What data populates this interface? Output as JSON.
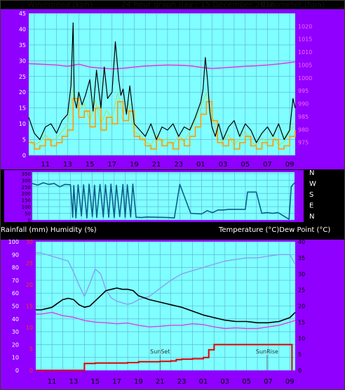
{
  "header": {
    "left": "Windspeed (kph)",
    "center": "24 hour graph day : 15 December 2018",
    "right": "Barometer (hpa)"
  },
  "colors": {
    "panel_bg": "#8f00ff",
    "plot_bg": "#7fffff",
    "grid": "#5aaed0",
    "wind_speed": "#000000",
    "wind_avg": "#ff9900",
    "wind_avg2": "#a6e06a",
    "barometer": "#e040e0",
    "direction": "#0c5e8a",
    "temperature": "#8aa0f0",
    "dewpoint": "#e040e0",
    "humidity": "#000000",
    "rain": "#e00000"
  },
  "x_tick_labels": [
    "11",
    "13",
    "15",
    "17",
    "19",
    "21",
    "23",
    "01",
    "03",
    "05",
    "07",
    "09"
  ],
  "direction_labels": [
    "N",
    "W",
    "S",
    "E",
    "N"
  ],
  "bottom_header": {
    "left": "Rainfall (mm)  Humidity (%)",
    "right": "Temperature (°C)Dew Point (°C)"
  },
  "annotations": [
    "SunSet",
    "SunRise"
  ],
  "chart_data": [
    {
      "type": "line",
      "title": "24 hour graph day : 15 December 2018",
      "ylabel_left": "Windspeed (kph)",
      "ylabel_right": "Barometer (hpa)",
      "x_range_hours": [
        9.5,
        33.5
      ],
      "left_ylim": [
        0,
        45
      ],
      "left_ticks": [
        0,
        5,
        10,
        15,
        20,
        25,
        30,
        35,
        40,
        45
      ],
      "right_ylim": [
        970,
        1025
      ],
      "right_ticks": [
        975,
        980,
        985,
        990,
        995,
        1000,
        1005,
        1010,
        1015,
        1020
      ],
      "grid": true,
      "series": [
        {
          "name": "Windspeed",
          "axis": "left",
          "x": [
            9.5,
            10,
            10.5,
            11,
            11.5,
            12,
            12.5,
            13,
            13.3,
            13.5,
            13.6,
            13.8,
            14,
            14.3,
            14.6,
            15,
            15.3,
            15.6,
            16,
            16.3,
            16.6,
            17,
            17.3,
            17.6,
            17.8,
            18,
            18.3,
            18.6,
            19,
            19.5,
            20,
            20.5,
            21,
            21.5,
            22,
            22.5,
            23,
            23.5,
            24,
            24.5,
            25,
            25.2,
            25.4,
            25.6,
            25.8,
            26,
            26.3,
            26.6,
            27,
            27.5,
            28,
            28.5,
            29,
            29.5,
            30,
            30.5,
            31,
            31.5,
            32,
            32.5,
            33,
            33.3,
            33.5
          ],
          "y": [
            12,
            7,
            5,
            9,
            10,
            7,
            11,
            13,
            22,
            42,
            18,
            15,
            20,
            16,
            19,
            24,
            14,
            27,
            15,
            28,
            18,
            20,
            36,
            24,
            19,
            21,
            13,
            22,
            10,
            8,
            6,
            10,
            5,
            9,
            8,
            10,
            6,
            9,
            8,
            12,
            17,
            21,
            31,
            24,
            14,
            9,
            6,
            10,
            5,
            9,
            11,
            6,
            10,
            8,
            4,
            7,
            9,
            6,
            10,
            5,
            8,
            18,
            15
          ]
        },
        {
          "name": "Average",
          "axis": "left",
          "x": [
            9.5,
            10,
            10.5,
            11,
            11.5,
            12,
            12.5,
            13,
            13.5,
            14,
            14.5,
            15,
            15.5,
            16,
            16.5,
            17,
            17.5,
            18,
            18.5,
            19,
            19.5,
            20,
            20.5,
            21,
            21.5,
            22,
            22.5,
            23,
            23.5,
            24,
            24.5,
            25,
            25.5,
            26,
            26.5,
            27,
            27.5,
            28,
            28.5,
            29,
            29.5,
            30,
            30.5,
            31,
            31.5,
            32,
            32.5,
            33,
            33.5
          ],
          "y": [
            4,
            2,
            3,
            5,
            3,
            4,
            6,
            8,
            18,
            12,
            14,
            9,
            15,
            8,
            12,
            10,
            17,
            11,
            14,
            6,
            5,
            3,
            2,
            5,
            3,
            4,
            2,
            5,
            3,
            6,
            9,
            13,
            17,
            11,
            4,
            3,
            5,
            2,
            4,
            6,
            3,
            2,
            4,
            3,
            5,
            2,
            3,
            6,
            8
          ]
        },
        {
          "name": "Barometer",
          "axis": "right",
          "x": [
            9.5,
            11,
            12,
            13,
            14,
            15,
            16,
            17,
            18,
            19,
            20,
            21,
            22,
            23,
            24,
            25,
            26,
            27,
            28,
            29,
            30,
            31,
            32,
            33,
            33.5
          ],
          "y": [
            1005.5,
            1005.2,
            1005,
            1004.5,
            1005.3,
            1004.2,
            1003.8,
            1003.5,
            1003.7,
            1004.2,
            1004.6,
            1004.8,
            1005,
            1004.9,
            1004.7,
            1004.1,
            1003.6,
            1003.9,
            1004.2,
            1004.5,
            1004.7,
            1005,
            1005.4,
            1005.9,
            1006.2
          ]
        }
      ]
    },
    {
      "type": "line",
      "ylabel": "Wind direction (deg)",
      "x_range_hours": [
        9.5,
        33.5
      ],
      "ylim": [
        0,
        360
      ],
      "ticks": [
        0,
        50,
        100,
        150,
        200,
        250,
        300,
        350
      ],
      "grid": true,
      "series": [
        {
          "name": "Direction",
          "x": [
            9.5,
            10,
            10.5,
            11,
            11.5,
            12,
            12.5,
            13,
            13.2,
            13.3,
            13.5,
            13.7,
            14,
            14.2,
            14.5,
            14.7,
            15,
            15.2,
            15.4,
            15.7,
            16,
            16.2,
            16.5,
            16.7,
            17,
            17.2,
            17.5,
            17.8,
            18,
            18.2,
            18.5,
            18.7,
            19,
            19.5,
            20,
            21,
            22,
            22.5,
            23,
            24,
            25,
            25.5,
            26,
            26.5,
            27,
            27.5,
            28,
            29,
            29.2,
            29.5,
            30,
            30.5,
            31,
            31.5,
            32,
            33,
            33.2,
            33.5
          ],
          "y": [
            275,
            262,
            280,
            268,
            275,
            250,
            268,
            265,
            20,
            260,
            15,
            265,
            30,
            265,
            15,
            270,
            25,
            262,
            18,
            268,
            22,
            265,
            20,
            270,
            18,
            262,
            25,
            268,
            20,
            265,
            22,
            270,
            20,
            18,
            22,
            20,
            18,
            15,
            268,
            50,
            45,
            70,
            55,
            75,
            75,
            80,
            80,
            80,
            210,
            210,
            210,
            50,
            55,
            50,
            55,
            5,
            250,
            280
          ]
        }
      ]
    },
    {
      "type": "line",
      "ylabel_left": "Rainfall (mm)  Humidity (%)",
      "ylabel_right": "Temperature (°C)Dew Point (°C)",
      "x_range_hours": [
        9.5,
        33.5
      ],
      "left_ylim": [
        0,
        100
      ],
      "left_ticks": [
        0,
        10,
        20,
        30,
        40,
        50,
        60,
        70,
        80,
        90,
        100
      ],
      "rain_ylim": [
        0,
        30
      ],
      "rain_ticks": [
        0,
        5,
        10,
        15,
        20,
        25,
        30
      ],
      "right_ylim": [
        0,
        40
      ],
      "right_ticks": [
        0,
        5,
        10,
        15,
        20,
        25,
        30,
        35,
        40
      ],
      "grid": true,
      "series": [
        {
          "name": "Temperature",
          "axis": "right",
          "x": [
            9.5,
            10,
            11,
            12,
            12.5,
            13,
            13.5,
            14,
            14.5,
            15,
            15.5,
            16,
            16.5,
            17,
            17.5,
            18,
            18.5,
            19,
            20,
            21,
            22,
            23,
            24,
            25,
            26,
            27,
            28,
            29,
            30,
            31,
            32,
            33,
            33.5
          ],
          "y": [
            36.5,
            36.5,
            35.5,
            34.5,
            34,
            30.5,
            26.5,
            23,
            27,
            31.5,
            30,
            25,
            22.5,
            21.5,
            21,
            20.5,
            21,
            22,
            23,
            25.5,
            28,
            30,
            31,
            32,
            33,
            34,
            34.5,
            35,
            35,
            35.5,
            36,
            36,
            33
          ]
        },
        {
          "name": "Humidity",
          "axis": "left",
          "x": [
            9.5,
            10,
            10.5,
            11,
            11.5,
            12,
            12.5,
            13,
            13.5,
            14,
            14.5,
            15,
            15.5,
            16,
            16.5,
            17,
            17.5,
            18,
            18.5,
            19,
            20,
            21,
            22,
            23,
            24,
            25,
            26,
            27,
            28,
            29,
            30,
            31,
            32,
            33,
            33.5
          ],
          "y": [
            47,
            47,
            48,
            49,
            52,
            55,
            56,
            55,
            51,
            49,
            50,
            54,
            58,
            62,
            63,
            64,
            63,
            63,
            62,
            58,
            55,
            53,
            51,
            49,
            46,
            43,
            41,
            39,
            38,
            38,
            37,
            37,
            38,
            41,
            45
          ]
        },
        {
          "name": "Dew Point",
          "axis": "right",
          "x": [
            9.5,
            10,
            11,
            12,
            13,
            14,
            15,
            16,
            17,
            18,
            19,
            20,
            21,
            22,
            23,
            24,
            25,
            26,
            27,
            28,
            29,
            30,
            31,
            32,
            33,
            33.5
          ],
          "y": [
            17.5,
            17.5,
            18,
            17,
            16.5,
            15.5,
            15,
            14.8,
            14.5,
            14.7,
            14,
            13.5,
            13.7,
            14,
            14,
            14.5,
            14.2,
            13.5,
            13,
            13.2,
            13,
            13,
            13.5,
            14,
            15,
            15.5
          ]
        },
        {
          "name": "Rainfall",
          "axis": "rain",
          "x": [
            9.5,
            13.8,
            14,
            15,
            18,
            19,
            21,
            22,
            22.5,
            23,
            24,
            25,
            25.5,
            26,
            27,
            28,
            29,
            30,
            31,
            32,
            33,
            33.1,
            33.2
          ],
          "y": [
            0,
            0,
            1.6,
            1.7,
            1.8,
            2,
            2.1,
            2.2,
            2.5,
            2.6,
            2.7,
            3,
            4.8,
            6,
            6,
            6,
            6,
            6,
            6,
            6,
            6,
            6,
            0
          ]
        }
      ]
    }
  ]
}
